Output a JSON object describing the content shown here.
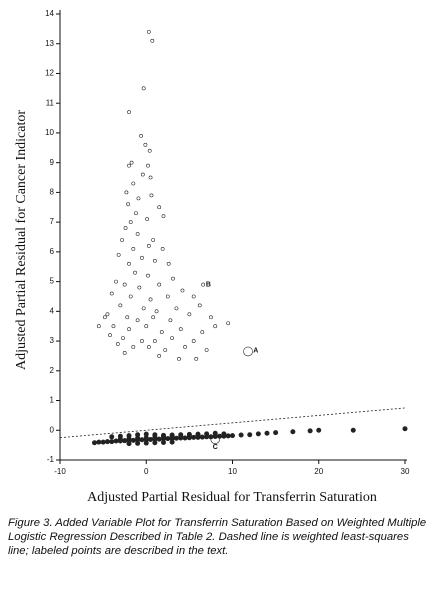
{
  "chart_data": {
    "type": "scatter",
    "x_label": "Adjusted Partial Residual for Transferrin Saturation",
    "y_label": "Adjusted Partial Residual for Cancer Indicator",
    "caption": "Figure 3.  Added Variable Plot for Transferrin Saturation Based on Weighted Multiple Logistic Regression Described in Table 2. Dashed line is weighted least-squares line; labeled points are described in the text.",
    "xlim": [
      -10,
      30
    ],
    "xticks": [
      -10,
      0,
      10,
      20,
      30
    ],
    "ylim": [
      -1,
      14
    ],
    "yticks": [
      -1,
      0,
      1,
      2,
      3,
      4,
      5,
      6,
      7,
      8,
      9,
      10,
      11,
      12,
      13,
      14
    ],
    "color": "#222222",
    "series": [
      {
        "type": "scatter",
        "marker": "open",
        "marker_size": 1.6,
        "x": [
          0.3,
          0.7,
          -0.3,
          -2,
          -0.6,
          -0.1,
          0.4,
          -2,
          -1.7,
          0.2,
          -0.4,
          0.5,
          -1.5,
          -2.3,
          0.6,
          -0.9,
          1.5,
          -2.1,
          -1.2,
          -1.8,
          0.1,
          2.0,
          -2.4,
          -1.0,
          0.8,
          -2.8,
          -1.5,
          0.3,
          1.9,
          -3.2,
          -0.5,
          -2.0,
          1.0,
          2.6,
          -1.3,
          0.2,
          3.1,
          -3.5,
          -2.5,
          -0.8,
          1.5,
          4.2,
          -4.0,
          -1.8,
          0.5,
          2.5,
          5.5,
          -3.0,
          -0.3,
          1.2,
          3.5,
          6.2,
          -4.5,
          -2.2,
          -1.0,
          0.8,
          2.8,
          5.0,
          7.5,
          -3.8,
          -2.0,
          0,
          1.8,
          4.0,
          6.5,
          8.0,
          -4.2,
          -2.7,
          -0.5,
          1.0,
          3.0,
          5.5,
          -3.3,
          -1.5,
          0.3,
          2.2,
          4.5,
          7.0,
          -2.5,
          1.5,
          3.8,
          -5.5,
          -4.8,
          9.5,
          6.6,
          5.8
        ],
        "y": [
          13.4,
          13.1,
          11.5,
          10.7,
          9.9,
          9.6,
          9.4,
          8.9,
          9.0,
          8.9,
          8.6,
          8.5,
          8.3,
          8.0,
          7.9,
          7.8,
          7.5,
          7.6,
          7.3,
          7.0,
          7.1,
          7.2,
          6.8,
          6.6,
          6.4,
          6.4,
          6.1,
          6.2,
          6.1,
          5.9,
          5.8,
          5.6,
          5.7,
          5.6,
          5.3,
          5.2,
          5.1,
          5.0,
          4.9,
          4.8,
          4.9,
          4.7,
          4.6,
          4.5,
          4.4,
          4.5,
          4.5,
          4.2,
          4.1,
          4.0,
          4.1,
          4.2,
          3.9,
          3.8,
          3.7,
          3.8,
          3.7,
          3.9,
          3.8,
          3.5,
          3.4,
          3.5,
          3.3,
          3.4,
          3.3,
          3.5,
          3.2,
          3.1,
          3.0,
          3.0,
          3.1,
          3.0,
          2.9,
          2.8,
          2.8,
          2.7,
          2.8,
          2.7,
          2.6,
          2.5,
          2.4,
          3.5,
          3.8,
          3.6,
          4.9,
          2.4
        ]
      },
      {
        "type": "scatter",
        "marker": "filled",
        "marker_size": 2.2,
        "x": [
          -6,
          -5.5,
          -5,
          -4.5,
          -4,
          -3.5,
          -3,
          -2.5,
          -2,
          -1.5,
          -1,
          -0.5,
          0,
          0.5,
          1,
          1.5,
          2,
          2.5,
          3,
          3.5,
          4,
          4.5,
          5,
          5.5,
          6,
          6.5,
          7,
          7.5,
          8,
          8.5,
          9,
          9.5,
          10,
          11,
          12,
          13,
          14,
          15,
          17,
          19,
          20,
          24,
          30,
          -4,
          -3,
          -2,
          -1,
          0,
          1,
          2,
          3,
          4,
          5,
          6,
          7,
          8,
          9,
          -3,
          -2,
          -1,
          0,
          1,
          2,
          3,
          4,
          5,
          6,
          -2,
          -1,
          0,
          1,
          2,
          3
        ],
        "y": [
          -0.42,
          -0.4,
          -0.4,
          -0.38,
          -0.38,
          -0.36,
          -0.36,
          -0.35,
          -0.34,
          -0.34,
          -0.33,
          -0.32,
          -0.32,
          -0.31,
          -0.3,
          -0.3,
          -0.29,
          -0.28,
          -0.28,
          -0.27,
          -0.26,
          -0.26,
          -0.25,
          -0.24,
          -0.24,
          -0.23,
          -0.22,
          -0.22,
          -0.21,
          -0.2,
          -0.2,
          -0.19,
          -0.18,
          -0.16,
          -0.15,
          -0.12,
          -0.1,
          -0.08,
          -0.05,
          -0.02,
          0.0,
          0.0,
          0.05,
          -0.22,
          -0.2,
          -0.18,
          -0.15,
          -0.13,
          -0.15,
          -0.17,
          -0.16,
          -0.15,
          -0.14,
          -0.13,
          -0.12,
          -0.1,
          -0.12,
          -0.3,
          -0.28,
          -0.26,
          -0.25,
          -0.23,
          -0.22,
          -0.21,
          -0.2,
          -0.19,
          -0.18,
          -0.45,
          -0.44,
          -0.43,
          -0.42,
          -0.41,
          -0.4
        ]
      },
      {
        "type": "scatter",
        "marker": "open",
        "marker_size": 4.5,
        "x": [
          11.8,
          8.0
        ],
        "y": [
          2.65,
          -0.3
        ]
      },
      {
        "type": "line",
        "style": "dashed",
        "x": [
          -10,
          30
        ],
        "y": [
          -0.25,
          0.75
        ]
      }
    ],
    "annotations": [
      {
        "text": "A",
        "x": 12.7,
        "y": 2.67
      },
      {
        "text": "B",
        "x": 7.2,
        "y": 4.9
      },
      {
        "text": "C",
        "x": 8.0,
        "y": -0.56
      }
    ]
  }
}
